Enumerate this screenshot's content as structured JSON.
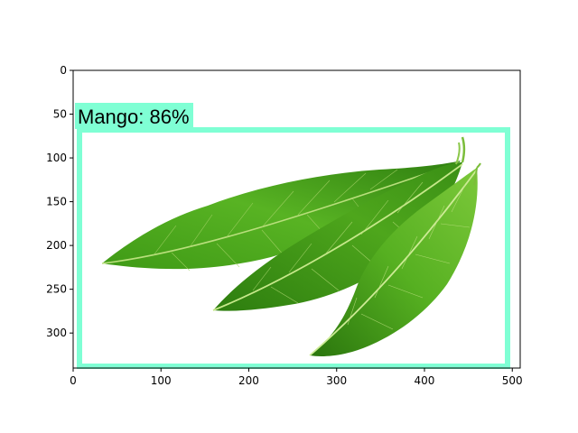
{
  "figure": {
    "x_ticks": [
      "0",
      "100",
      "200",
      "300",
      "400",
      "500"
    ],
    "y_ticks": [
      "0",
      "50",
      "100",
      "150",
      "200",
      "250",
      "300"
    ],
    "x_tick_values": [
      0,
      100,
      200,
      300,
      400,
      500
    ],
    "y_tick_values": [
      0,
      50,
      100,
      150,
      200,
      250,
      300
    ],
    "x_range": [
      0,
      509
    ],
    "y_range": [
      340,
      0
    ],
    "image_content": "mango-leaves-photo"
  },
  "detection": {
    "label": "Mango: 86%",
    "class": "Mango",
    "confidence": 0.86,
    "box_xyxy": [
      6,
      68,
      494,
      338
    ],
    "label_box_xyxy": [
      3,
      39,
      137,
      68
    ],
    "color": "#7fffd4"
  },
  "colors": {
    "leaf_dark": "#2e7d12",
    "leaf_mid": "#4caf1e",
    "leaf_light": "#7cc83a",
    "vein": "#c6e88a"
  }
}
